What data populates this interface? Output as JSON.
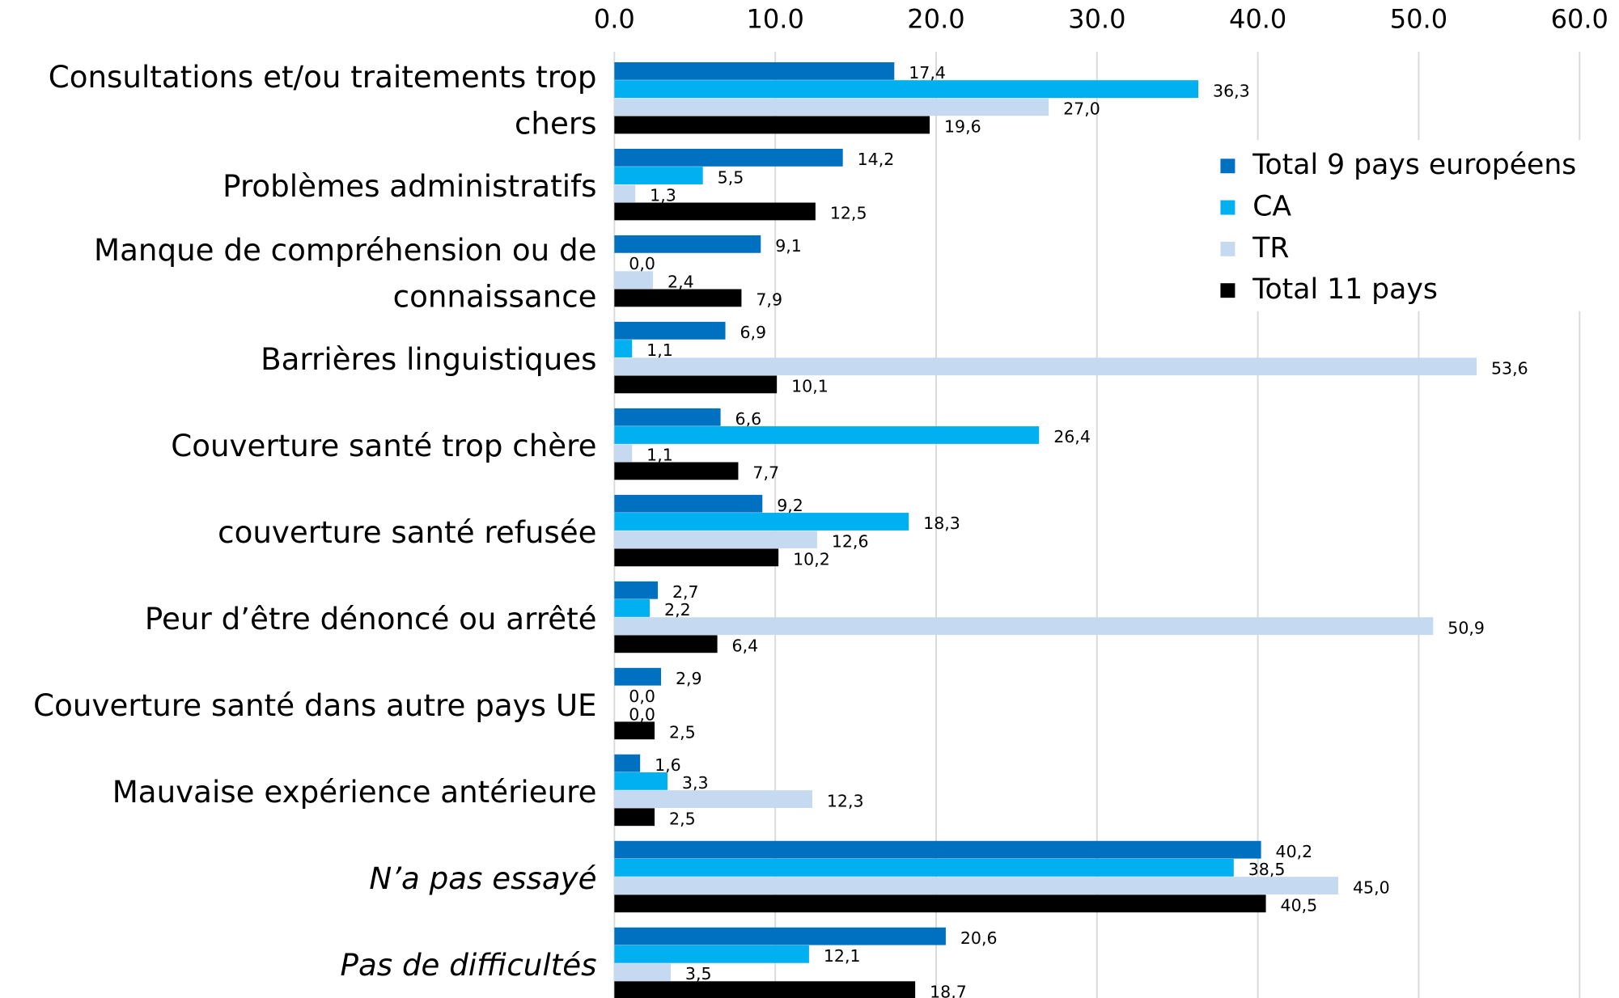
{
  "chart_data": {
    "type": "bar",
    "orientation": "horizontal",
    "categories": [
      "Consultations et/ou traitements trop chers",
      "Problèmes administratifs",
      "Manque de compréhension ou de connaissance",
      "Barrières linguistiques",
      "Couverture santé trop chère",
      "couverture santé refusée",
      "Peur d’être dénoncé ou arrêté",
      "Couverture santé dans autre pays UE",
      "Mauvaise expérience antérieure",
      "N’a pas essayé",
      "Pas de difficultés"
    ],
    "series": [
      {
        "name": "Total 9 pays européens",
        "color": "#0070c0",
        "values": [
          17.4,
          14.2,
          9.1,
          6.9,
          6.6,
          9.2,
          2.7,
          2.9,
          1.6,
          40.2,
          20.6
        ],
        "value_labels": [
          "17,4",
          "14,2",
          "9,1",
          "6,9",
          "6,6",
          "9,2",
          "2,7",
          "2,9",
          "1,6",
          "40,2",
          "20,6"
        ]
      },
      {
        "name": "CA",
        "color": "#00b0f0",
        "values": [
          36.3,
          5.5,
          0.0,
          1.1,
          26.4,
          18.3,
          2.2,
          0.0,
          3.3,
          38.5,
          12.1
        ],
        "value_labels": [
          "36,3",
          "5,5",
          "0,0",
          "1,1",
          "26,4",
          "18,3",
          "2,2",
          "0,0",
          "3,3",
          "38,5",
          "12,1"
        ]
      },
      {
        "name": "TR",
        "color": "#c5d9f1",
        "values": [
          27.0,
          1.3,
          2.4,
          53.6,
          1.1,
          12.6,
          50.9,
          0.0,
          12.3,
          45.0,
          3.5
        ],
        "value_labels": [
          "27,0",
          "1,3",
          "2,4",
          "53,6",
          "1,1",
          "12,6",
          "50,9",
          "0,0",
          "12,3",
          "45,0",
          "3,5"
        ]
      },
      {
        "name": "Total 11 pays",
        "color": "#000000",
        "values": [
          19.6,
          12.5,
          7.9,
          10.1,
          7.7,
          10.2,
          6.4,
          2.5,
          2.5,
          40.5,
          18.7
        ],
        "value_labels": [
          "19,6",
          "12,5",
          "7,9",
          "10,1",
          "7,7",
          "10,2",
          "6,4",
          "2,5",
          "2,5",
          "40,5",
          "18,7"
        ]
      }
    ],
    "xlim": [
      0,
      60
    ],
    "xticks": [
      {
        "value": 0,
        "label": "0.0"
      },
      {
        "value": 10,
        "label": "10.0"
      },
      {
        "value": 20,
        "label": "20.0"
      },
      {
        "value": 30,
        "label": "30.0"
      },
      {
        "value": 40,
        "label": "40.0"
      },
      {
        "value": 50,
        "label": "50.0"
      },
      {
        "value": 60,
        "label": "60.0"
      }
    ],
    "grid": true,
    "legend": "upper right"
  }
}
